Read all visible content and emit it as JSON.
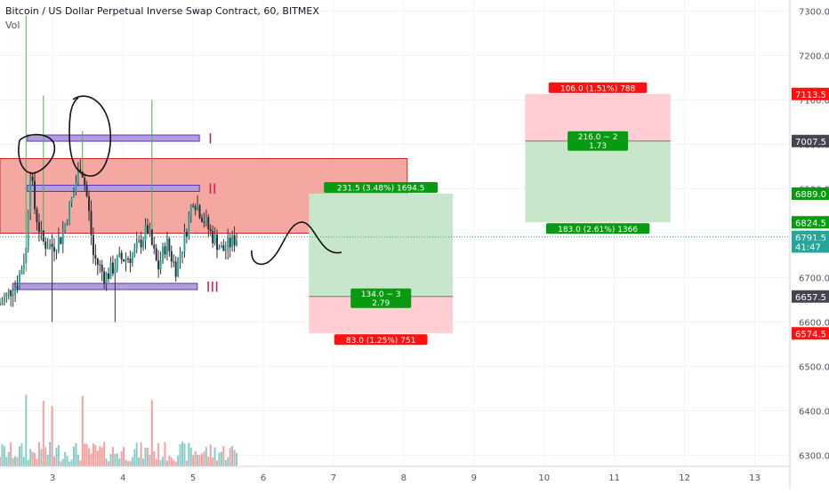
{
  "header": {
    "title": "Bitcoin / US Dollar Perpetual Inverse Swap Contract, 60, BITMEX",
    "indicator": "Vol"
  },
  "colors": {
    "up": "#26a69a",
    "down": "#ef5350",
    "wick_up": "#4caf50",
    "resistance_zone": "#f28b82",
    "level_line": "#b39ddb",
    "profit_zone": "#c8e6c9",
    "loss_zone": "#ffcdd2",
    "label_green": "#089a10",
    "label_red": "#ff1111",
    "level_label_text": "#d81b60",
    "current_price_line": "#26a69a"
  },
  "chart_data": {
    "type": "candlestick",
    "x_axis": {
      "ticks": [
        "3",
        "4",
        "5",
        "6",
        "7",
        "8",
        "9",
        "10",
        "11",
        "12",
        "13"
      ],
      "tick_values": [
        3,
        4,
        5,
        6,
        7,
        8,
        9,
        10,
        11,
        12,
        13
      ],
      "range": [
        2.25,
        13.5
      ]
    },
    "y_axis": {
      "ticks": [
        "7300.0",
        "7200.0",
        "7100.0",
        "7000.0",
        "6900.0",
        "6800.0",
        "6700.0",
        "6600.0",
        "6500.0",
        "6400.0",
        "6300.0"
      ],
      "tick_values": [
        7300,
        7200,
        7100,
        7000,
        6900,
        6800,
        6700,
        6600,
        6500,
        6400,
        6300
      ],
      "range": [
        6275,
        7325
      ],
      "position": "right"
    },
    "price_labels": [
      {
        "text": "7113.5",
        "value": 7113.5,
        "style": "red"
      },
      {
        "text": "7007.5",
        "value": 7007.5,
        "style": "dark"
      },
      {
        "text": "6889.0",
        "value": 6889.0,
        "style": "green"
      },
      {
        "text": "6824.5",
        "value": 6824.5,
        "style": "green"
      },
      {
        "text": "6791.5",
        "value": 6791.5,
        "style": "teal"
      },
      {
        "text": "41:47",
        "value": 6770,
        "style": "teal"
      },
      {
        "text": "6657.5",
        "value": 6657.5,
        "style": "dark"
      },
      {
        "text": "6574.5",
        "value": 6574.5,
        "style": "red"
      }
    ],
    "current_price": 6791.5,
    "resistance_zone": {
      "x_start": 2.25,
      "x_end": 8.05,
      "y_low": 6800,
      "y_high": 6968
    },
    "levels": [
      {
        "label": "I",
        "value": 7014,
        "x_start": 2.64,
        "x_end": 5.09
      },
      {
        "label": "II",
        "value": 6901,
        "x_start": 2.64,
        "x_end": 5.09
      },
      {
        "label": "III",
        "value": 6680,
        "x_start": 2.43,
        "x_end": 5.06
      }
    ],
    "positions": [
      {
        "kind": "long",
        "x_start": 6.65,
        "x_end": 8.7,
        "entry": 6657.5,
        "target": 6889.0,
        "stop": 6574.5,
        "target_label": "231.5 (3.48%) 1694.5",
        "stop_label": "83.0 (1.25%) 751",
        "ratio_label": [
          "134.0 ~ 3",
          "2.79"
        ]
      },
      {
        "kind": "short",
        "x_start": 9.73,
        "x_end": 11.8,
        "entry": 7007.5,
        "target": 6824.5,
        "stop": 7113.5,
        "target_label": "183.0 (2.61%) 1366",
        "stop_label": "106.0 (1.51%) 788",
        "ratio_label": [
          "216.0 ~ 2",
          "1.73"
        ]
      }
    ],
    "volume_axis_max": 1500
  }
}
